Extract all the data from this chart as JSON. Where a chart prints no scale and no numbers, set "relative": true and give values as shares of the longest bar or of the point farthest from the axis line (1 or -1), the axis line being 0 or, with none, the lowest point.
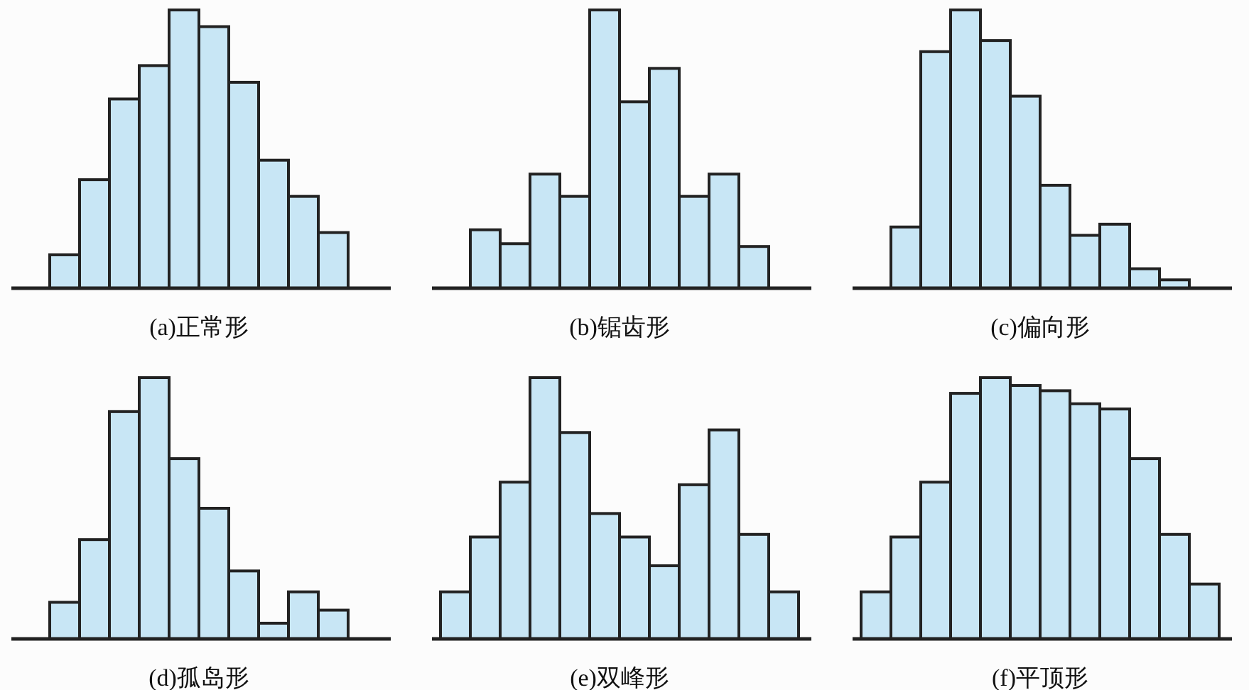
{
  "chart_data": [
    {
      "type": "bar",
      "relative": true,
      "title": "(a)正常形",
      "categories": [
        null,
        null,
        null,
        null,
        null,
        null,
        null,
        null,
        null,
        null
      ],
      "color": "#c8e6f5",
      "values": [
        0.12,
        0.39,
        0.68,
        0.8,
        1,
        0.94,
        0.74,
        0.46,
        0.33,
        0.2
      ]
    },
    {
      "type": "bar",
      "relative": true,
      "title": "(b)锯齿形",
      "categories": [
        null,
        null,
        null,
        null,
        null,
        null,
        null,
        null,
        null,
        null
      ],
      "color": "#c8e6f5",
      "values": [
        0.21,
        0.16,
        0.41,
        0.33,
        1,
        0.67,
        0.79,
        0.33,
        0.41,
        0.15
      ]
    },
    {
      "type": "bar",
      "relative": true,
      "title": "(c)偏向形",
      "categories": [
        null,
        null,
        null,
        null,
        null,
        null,
        null,
        null,
        null,
        null
      ],
      "color": "#c8e6f5",
      "values": [
        0.22,
        0.85,
        1,
        0.89,
        0.69,
        0.37,
        0.19,
        0.23,
        0.07,
        0.03
      ]
    },
    {
      "type": "bar",
      "relative": true,
      "title": "(d)孤岛形",
      "categories": [
        null,
        null,
        null,
        null,
        null,
        null,
        null,
        null,
        null,
        null
      ],
      "color": "#c8e6f5",
      "values": [
        0.14,
        0.38,
        0.87,
        1,
        0.69,
        0.5,
        0.26,
        0.06,
        0.18,
        0.11
      ]
    },
    {
      "type": "bar",
      "relative": true,
      "title": "(e)双峰形",
      "categories": [
        null,
        null,
        null,
        null,
        null,
        null,
        null,
        null,
        null,
        null,
        null,
        null
      ],
      "color": "#c8e6f5",
      "values": [
        0.18,
        0.39,
        0.6,
        1,
        0.79,
        0.48,
        0.39,
        0.28,
        0.59,
        0.8,
        0.4,
        0.18
      ]
    },
    {
      "type": "bar",
      "relative": true,
      "title": "(f)平顶形",
      "categories": [
        null,
        null,
        null,
        null,
        null,
        null,
        null,
        null,
        null,
        null,
        null,
        null
      ],
      "color": "#c8e6f5",
      "values": [
        0.18,
        0.39,
        0.6,
        0.94,
        1,
        0.97,
        0.95,
        0.9,
        0.88,
        0.69,
        0.4,
        0.21
      ]
    }
  ]
}
